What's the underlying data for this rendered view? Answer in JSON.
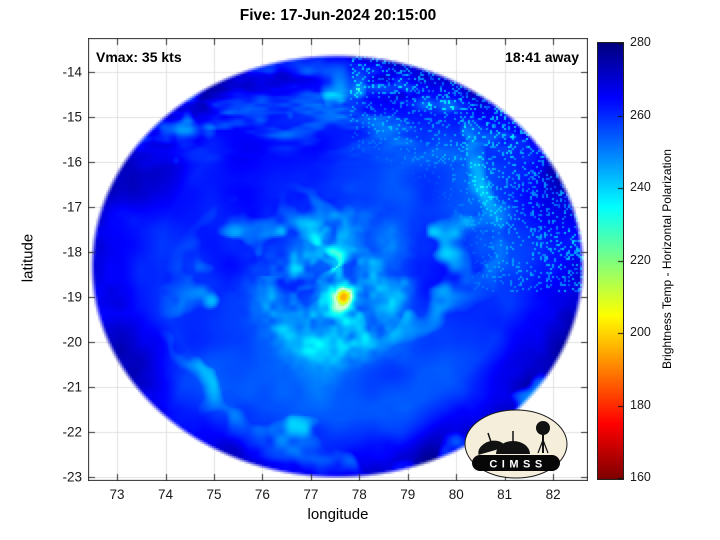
{
  "title": "Five: 17-Jun-2024 20:15:00",
  "annotations": {
    "vmax": "Vmax: 35 kts",
    "away": "18:41 away"
  },
  "axes": {
    "xlabel": "longitude",
    "ylabel": "latitude",
    "x_ticks": [
      73,
      74,
      75,
      76,
      77,
      78,
      79,
      80,
      81,
      82
    ],
    "y_ticks": [
      -14,
      -15,
      -16,
      -17,
      -18,
      -19,
      -20,
      -21,
      -22,
      -23
    ],
    "xlim": [
      72.4,
      82.72
    ],
    "ylim": [
      -23.09,
      -13.24
    ]
  },
  "colorbar": {
    "label": "Brightness Temp - Horizontal Polarization",
    "min": 160,
    "max": 280,
    "ticks": [
      160,
      180,
      200,
      220,
      240,
      260,
      280
    ],
    "colormap": "jet reversed (280 K = dark blue, 160 K = dark red)"
  },
  "logo": {
    "text": "CIMSS"
  },
  "chart_data": {
    "type": "heatmap",
    "title": "Five: 17-Jun-2024 20:15:00",
    "xlabel": "longitude",
    "ylabel": "latitude",
    "xlim": [
      72.4,
      82.72
    ],
    "ylim": [
      -23.09,
      -13.24
    ],
    "grid": true,
    "legend_position": "right-colorbar",
    "colorbar_label": "Brightness Temp - Horizontal Polarization",
    "colorbar_range": [
      160,
      280
    ],
    "colorbar_ticks": [
      160,
      180,
      200,
      220,
      240,
      260,
      280
    ],
    "storm": {
      "name": "Five",
      "datetime": "17-Jun-2024 20:15:00",
      "vmax_kts": 35,
      "observation_offset": "18:41 away"
    },
    "swath": {
      "shape": "circular",
      "center_lon": 77.55,
      "center_lat": -18.2,
      "radius_deg": 5.1
    },
    "features": [
      {
        "name": "background cloud field",
        "approx_temp_k": 257,
        "appearance": "bright blue over whole swath"
      },
      {
        "name": "central convective cluster",
        "lon": 77.5,
        "lat": -18.8,
        "approx_temp_k": 228,
        "appearance": "cyan-white patchy cluster near storm center"
      },
      {
        "name": "warm core spot",
        "lon": 77.75,
        "lat": -19.0,
        "approx_temp_k": 205,
        "appearance": "small yellow-green dot"
      },
      {
        "name": "spiral rainbands",
        "approx_temp_k": 240,
        "appearance": "faint cyan arcs curling around center"
      },
      {
        "name": "scan-edge speckle",
        "region": "northeast rim of swath",
        "approx_temp_k": 235,
        "appearance": "white/cyan noise specks"
      },
      {
        "name": "outer swath darkening",
        "approx_temp_k": 270,
        "appearance": "darker blue toward swath rim"
      }
    ]
  }
}
